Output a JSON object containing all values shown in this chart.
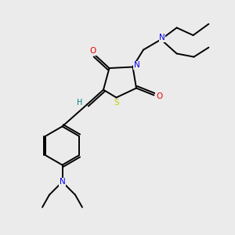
{
  "background_color": "#ebebeb",
  "atom_colors": {
    "C": "#000000",
    "N": "#0000ee",
    "O": "#ee0000",
    "S": "#cccc00",
    "H": "#008080"
  },
  "figsize": [
    3.0,
    3.0
  ],
  "dpi": 100,
  "lw": 1.4,
  "fontsize": 7.5
}
